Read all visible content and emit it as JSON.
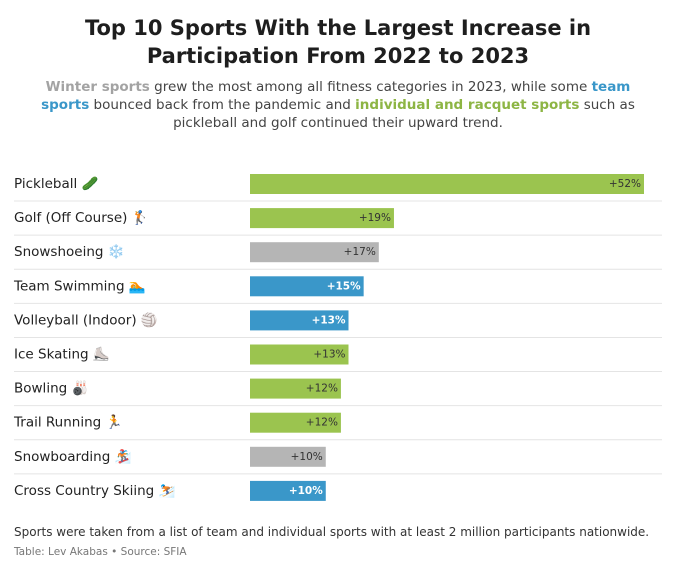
{
  "chart_data": {
    "type": "bar",
    "title": "Top 10 Sports With the Largest Increase in Participation From 2022 to 2023",
    "subtitle": [
      {
        "text": "Winter sports",
        "color": "#a3a3a3"
      },
      {
        "text": " grew the most among all fitness categories in 2023, while some "
      },
      {
        "text": "team sports",
        "color": "#3a97c9"
      },
      {
        "text": " bounced back from the pandemic and "
      },
      {
        "text": "individual and racquet sports",
        "color": "#8db544"
      },
      {
        "text": " such as pickleball and golf continued their upward trend."
      }
    ],
    "categories": [
      "Pickleball 🥒",
      "Golf (Off Course) 🏌️",
      "Snowshoeing ❄️",
      "Team Swimming 🏊",
      "Volleyball (Indoor) 🏐",
      "Ice Skating ⛸️",
      "Bowling 🎳",
      "Trail Running 🏃",
      "Snowboarding 🏂",
      "Cross Country Skiing ⛷️"
    ],
    "values": [
      52,
      19,
      17,
      15,
      13,
      13,
      12,
      12,
      10,
      10
    ],
    "value_labels": [
      "+52%",
      "+19%",
      "+17%",
      "+15%",
      "+13%",
      "+13%",
      "+12%",
      "+12%",
      "+10%",
      "+10%"
    ],
    "colors": [
      "#9bc44f",
      "#9bc44f",
      "#b5b5b5",
      "#3a97c9",
      "#3a97c9",
      "#9bc44f",
      "#9bc44f",
      "#9bc44f",
      "#b5b5b5",
      "#3a97c9"
    ],
    "note": "Sports were taken from a list of team and individual sports with at least 2 million participants nationwide.",
    "source": "Table: Lev Akabas • Source: SFIA"
  }
}
